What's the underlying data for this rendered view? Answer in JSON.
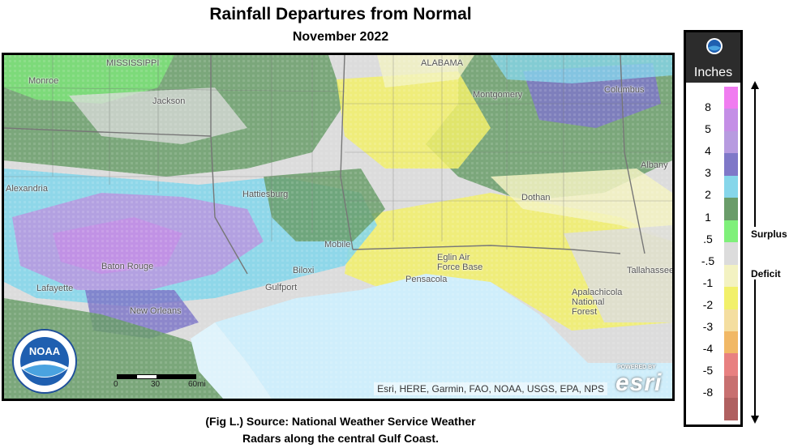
{
  "header": {
    "title": "Rainfall Departures from Normal",
    "subtitle": "November 2022"
  },
  "map": {
    "places": [
      {
        "name": "MISSISSIPPI"
      },
      {
        "name": "ALABAMA"
      },
      {
        "name": "Jackson"
      },
      {
        "name": "Montgomery"
      },
      {
        "name": "Columbus"
      },
      {
        "name": "Monroe"
      },
      {
        "name": "Alexandria"
      },
      {
        "name": "Hattiesburg"
      },
      {
        "name": "Dothan"
      },
      {
        "name": "Albany"
      },
      {
        "name": "Baton Rouge"
      },
      {
        "name": "Mobile"
      },
      {
        "name": "Biloxi"
      },
      {
        "name": "Gulfport"
      },
      {
        "name": "Lafayette"
      },
      {
        "name": "New Orleans"
      },
      {
        "name": "Eglin Air Force Base"
      },
      {
        "name": "Pensacola"
      },
      {
        "name": "Tallahassee"
      },
      {
        "name": "Apalachicola National Forest"
      }
    ],
    "attribution": "Esri, HERE, Garmin, FAO, NOAA, USGS, EPA, NPS",
    "powered_by": "POWERED BY",
    "esri_wordmark": "esri",
    "scale_labels": [
      "0",
      "30",
      "60mi"
    ],
    "noaa_label": "NOAA",
    "noaa_ring_text": "NATIONAL OCEANIC AND ATMOSPHERIC ADMINISTRATION · U.S. DEPARTMENT OF COMMERCE"
  },
  "legend": {
    "unit": "Inches",
    "ticks": [
      "8",
      "5",
      "4",
      "3",
      "2",
      "1",
      ".5",
      "-.5",
      "-1",
      "-2",
      "-3",
      "-4",
      "-5",
      "-8"
    ],
    "ramp_colors": [
      "#f07cf0",
      "#c48ee6",
      "#b79be0",
      "#7f78c8",
      "#86d6ea",
      "#6a9d6a",
      "#7ff07a",
      "#dcdcdc",
      "#f3f2c2",
      "#f2f06a",
      "#f4dea0",
      "#f1b866",
      "#e88080",
      "#c87070",
      "#b06060"
    ],
    "surplus_label": "Surplus",
    "deficit_label": "Deficit"
  },
  "caption": {
    "line1": "(Fig L.) Source: National Weather Service Weather",
    "line2": "Radars along the central Gulf Coast."
  }
}
